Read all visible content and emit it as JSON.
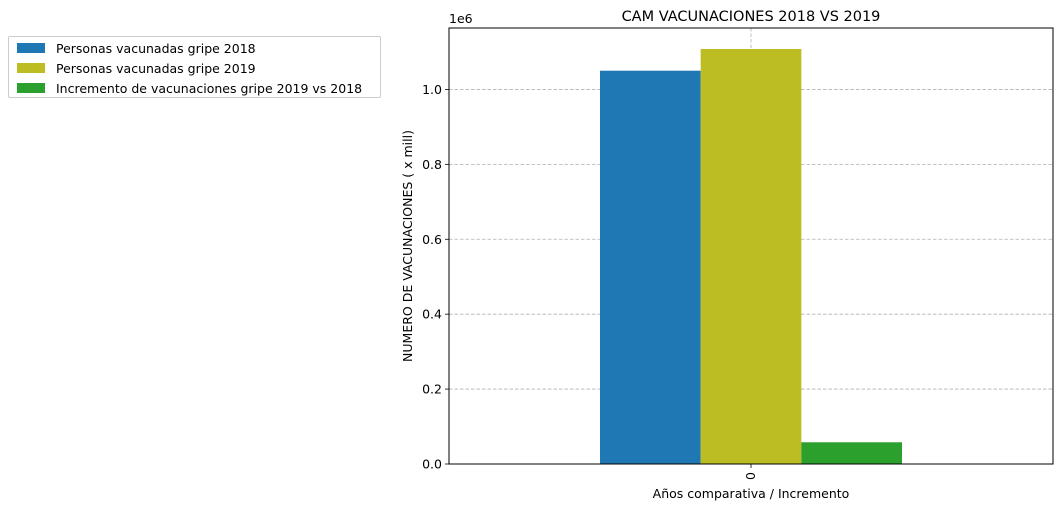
{
  "chart_data": {
    "type": "bar",
    "title": "CAM  VACUNACIONES 2018 VS 2019",
    "xlabel": "Años comparativa / Incremento",
    "ylabel": "NUMERO DE VACUNACIONES ( x mill)",
    "y_offset_label": "1e6",
    "categories": [
      "0"
    ],
    "series": [
      {
        "name": "Personas vacunadas gripe 2018",
        "color": "#1f77b4",
        "values": [
          1050000
        ]
      },
      {
        "name": "Personas vacunadas gripe 2019",
        "color": "#bcbd22",
        "values": [
          1108000
        ]
      },
      {
        "name": "Incremento de vacunaciones gripe 2019 vs 2018",
        "color": "#2ca02c",
        "values": [
          58000
        ]
      }
    ],
    "ylim": [
      0,
      1164000
    ],
    "yticks": [
      0,
      200000,
      400000,
      600000,
      800000,
      1000000
    ],
    "ytick_labels": [
      "0.0",
      "0.2",
      "0.4",
      "0.6",
      "0.8",
      "1.0"
    ],
    "grid": true,
    "legend_position": "outside-top-left"
  }
}
